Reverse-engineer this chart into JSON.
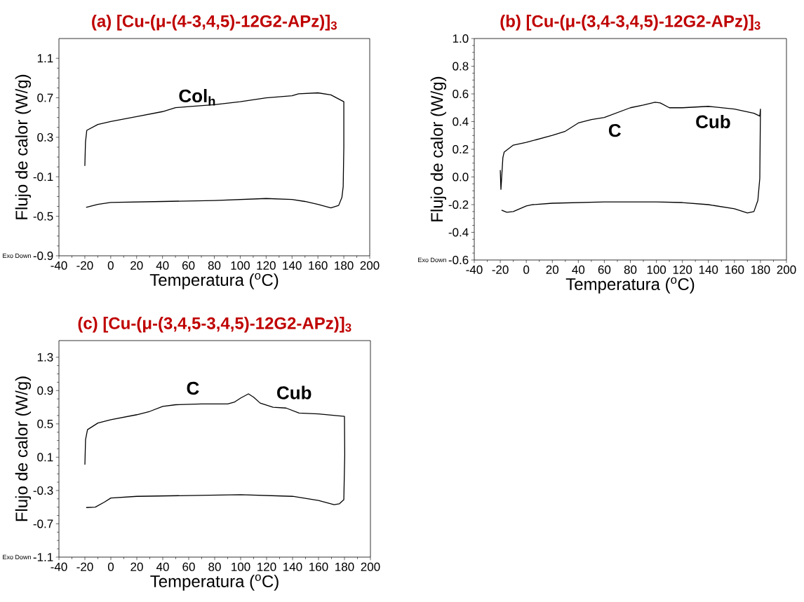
{
  "chart_data": [
    {
      "type": "line",
      "title": "(a) [Cu-(μ-(4-3,4,5)-12G2-APz)]$_{3}$",
      "xlabel": "Temperatura ($^{o}$C)",
      "ylabel": "Flujo de calor (W/g)",
      "xlim": [
        -40,
        200
      ],
      "ylim": [
        -0.9,
        1.3
      ],
      "xticks": [
        -40,
        -20,
        0,
        20,
        40,
        60,
        80,
        100,
        120,
        140,
        160,
        180,
        200
      ],
      "yticks": [
        -0.9,
        -0.5,
        -0.1,
        0.3,
        0.7,
        1.1
      ],
      "series": [
        {
          "color": "#000000",
          "x": [
            -20,
            -19.5,
            -18.5,
            -10,
            0,
            20,
            40,
            50,
            60,
            80,
            100,
            120,
            140,
            145,
            160,
            170,
            180,
            180,
            179.5,
            178.5,
            176,
            170,
            160,
            150,
            140,
            120,
            80,
            40,
            0,
            -10,
            -19
          ],
          "values": [
            0.01,
            0.25,
            0.37,
            0.43,
            0.46,
            0.51,
            0.56,
            0.6,
            0.61,
            0.63,
            0.66,
            0.7,
            0.72,
            0.74,
            0.75,
            0.73,
            0.66,
            0.2,
            -0.2,
            -0.31,
            -0.39,
            -0.415,
            -0.38,
            -0.35,
            -0.33,
            -0.32,
            -0.34,
            -0.35,
            -0.36,
            -0.38,
            -0.41
          ]
        }
      ],
      "annotations": [
        "Col$_{h}$",
        "Exo Down"
      ]
    },
    {
      "type": "line",
      "title": "(b) [Cu-(μ-(3,4-3,4,5)-12G2-APz)]$_{3}$",
      "xlabel": "Temperatura ($^{o}$C)",
      "ylabel": "Flujo de calor (W/g)",
      "xlim": [
        -40,
        200
      ],
      "ylim": [
        -0.6,
        1.0
      ],
      "xticks": [
        -40,
        -20,
        0,
        20,
        40,
        60,
        80,
        100,
        120,
        140,
        160,
        180,
        200
      ],
      "yticks": [
        -0.6,
        -0.4,
        -0.2,
        {
          "value": 0,
          "label": "0.0"
        },
        0.2,
        0.4,
        0.6,
        0.8,
        {
          "value": 1,
          "label": "1.0"
        }
      ],
      "series": [
        {
          "color": "#000000",
          "x": [
            -20,
            -19.5,
            -18,
            -17,
            -10,
            0,
            20,
            30,
            40,
            50,
            60,
            80,
            90,
            99,
            103,
            110,
            120,
            140,
            160,
            175,
            179.5,
            180,
            179.5,
            178,
            175,
            170,
            160,
            140,
            120,
            100,
            60,
            20,
            5,
            0,
            -10,
            -15,
            -19
          ],
          "values": [
            0.05,
            -0.09,
            0.14,
            0.18,
            0.23,
            0.25,
            0.3,
            0.33,
            0.39,
            0.415,
            0.43,
            0.5,
            0.52,
            0.54,
            0.535,
            0.5,
            0.5,
            0.51,
            0.49,
            0.46,
            0.44,
            0.49,
            -0.01,
            -0.17,
            -0.25,
            -0.26,
            -0.23,
            -0.2,
            -0.185,
            -0.18,
            -0.18,
            -0.19,
            -0.2,
            -0.21,
            -0.25,
            -0.255,
            -0.24
          ]
        }
      ],
      "annotations": [
        "C",
        "Cub",
        "Exo Down"
      ]
    },
    {
      "type": "line",
      "title": "(c) [Cu-(μ-(3,4,5-3,4,5)-12G2-APz)]$_{3}$",
      "xlabel": "Temperatura ($^{o}$C)",
      "ylabel": "Flujo de calor (W/g)",
      "xlim": [
        -40,
        200
      ],
      "ylim": [
        -1.1,
        1.5
      ],
      "xticks": [
        -40,
        -20,
        0,
        20,
        40,
        60,
        80,
        100,
        120,
        140,
        160,
        180,
        200
      ],
      "yticks": [
        -1.1,
        -0.7,
        -0.3,
        0.1,
        0.5,
        0.9,
        1.3
      ],
      "series": [
        {
          "color": "#000000",
          "x": [
            -20,
            -19.5,
            -18,
            -10,
            0,
            20,
            30,
            40,
            50,
            70,
            90,
            95,
            100,
            106,
            110,
            115,
            125,
            135,
            145,
            160,
            180,
            180.2,
            179.5,
            176,
            172,
            160,
            140,
            100,
            60,
            20,
            0,
            -5,
            -12,
            -19
          ],
          "values": [
            0.01,
            0.31,
            0.43,
            0.51,
            0.55,
            0.61,
            0.65,
            0.71,
            0.73,
            0.74,
            0.74,
            0.76,
            0.81,
            0.86,
            0.82,
            0.75,
            0.7,
            0.69,
            0.63,
            0.62,
            0.59,
            0.13,
            -0.41,
            -0.46,
            -0.47,
            -0.42,
            -0.37,
            -0.35,
            -0.36,
            -0.37,
            -0.39,
            -0.44,
            -0.5,
            -0.505
          ]
        }
      ],
      "annotations": [
        "C",
        "Cub",
        "Exo Down"
      ]
    }
  ]
}
